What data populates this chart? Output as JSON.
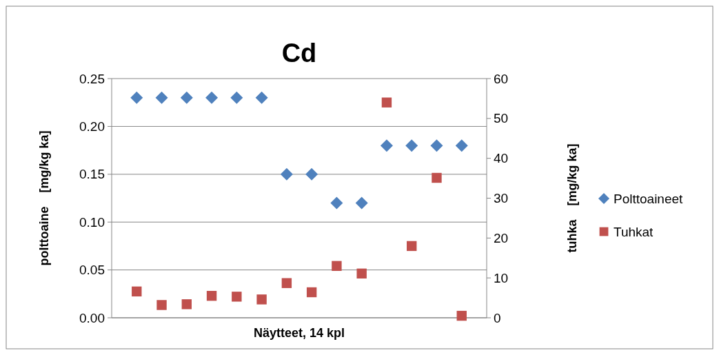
{
  "chart_data": {
    "type": "scatter",
    "title": "Cd",
    "xlabel": "Näytteet, 14 kpl",
    "ylabel": "polttoaine    [mg/kg ka]",
    "y2label": "tuhka    [mg/kg ka]",
    "categories": [
      null,
      null,
      null,
      null,
      null,
      null,
      null,
      null,
      null,
      null,
      null,
      null,
      null,
      null
    ],
    "series": [
      {
        "name": "Polttoaineet",
        "color": "#4f81bd",
        "marker": "diamond",
        "values": [
          0.23,
          0.23,
          0.23,
          0.23,
          0.23,
          0.23,
          0.15,
          0.15,
          0.12,
          0.12,
          0.18,
          0.18,
          0.18,
          0.18
        ]
      },
      {
        "name": "Tuhkat",
        "color": "#c0504d",
        "marker": "square",
        "axis": "y2",
        "values": [
          6.6,
          3.2,
          3.4,
          5.5,
          5.3,
          4.6,
          8.7,
          6.4,
          13.0,
          11.1,
          54.0,
          18.0,
          35.1,
          0.5
        ]
      }
    ],
    "ylim": [
      0,
      0.25
    ],
    "yticks": [
      {
        "value": 0,
        "label": "0.00"
      },
      {
        "value": 0.05,
        "label": "0.05"
      },
      {
        "value": 0.1,
        "label": "0.10"
      },
      {
        "value": 0.15,
        "label": "0.15"
      },
      {
        "value": 0.2,
        "label": "0.20"
      },
      {
        "value": 0.25,
        "label": "0.25"
      }
    ],
    "y2lim": [
      0,
      60
    ],
    "y2ticks": [
      0,
      10,
      20,
      30,
      40,
      50,
      60
    ],
    "grid": "y",
    "legend": "right"
  }
}
